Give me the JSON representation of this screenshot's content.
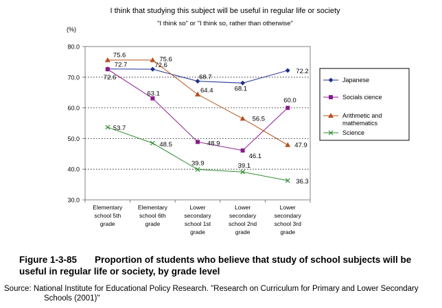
{
  "chart_data": {
    "type": "line",
    "title": "I think that studying this subject will be useful in regular life or society",
    "subtitle": "\"I think so\" or \"I think so, rather than otherwise\"",
    "ylabel": "(%)",
    "xlabel": "",
    "ylim": [
      30.0,
      80.0
    ],
    "yticks": [
      "80.0",
      "70.0",
      "60.0",
      "50.0",
      "40.0",
      "30.0"
    ],
    "ytick_values": [
      80,
      70,
      60,
      50,
      40,
      30
    ],
    "grid": "horizontal-dotted",
    "legend": "right",
    "categories": [
      [
        "Elementary",
        "school 5th",
        "grade"
      ],
      [
        "Elementary",
        "school 6th",
        "grade"
      ],
      [
        "Lower",
        "secondary",
        "school 1st",
        "grade"
      ],
      [
        "Lower",
        "secondary",
        "school 2nd",
        "grade"
      ],
      [
        "Lower",
        "secondary",
        "school 3rd",
        "grade"
      ]
    ],
    "series": [
      {
        "name": "Japanese",
        "legend_lines": [
          "Japanese"
        ],
        "values": [
          72.7,
          72.6,
          68.7,
          68.1,
          72.2
        ],
        "labels": [
          "72.7",
          "72.6",
          "68.7",
          "68.1",
          "72.2"
        ],
        "color": "#1f2f8f",
        "marker": "diamond"
      },
      {
        "name": "Socials cience",
        "legend_lines": [
          "Socials cience"
        ],
        "values": [
          72.6,
          63.1,
          48.9,
          46.1,
          60.0
        ],
        "labels": [
          "72.6",
          "63.1",
          "48.9",
          "46.1",
          "60.0"
        ],
        "color": "#8b1a8b",
        "marker": "square"
      },
      {
        "name": "Arithmetic and mathematics",
        "legend_lines": [
          "Arithmetic and",
          "mathematics"
        ],
        "values": [
          75.6,
          75.6,
          64.4,
          56.5,
          47.9
        ],
        "labels": [
          "75.6",
          "75.6",
          "64.4",
          "56.5",
          "47.9"
        ],
        "color": "#b5501a",
        "marker": "triangle"
      },
      {
        "name": "Science",
        "legend_lines": [
          "Science"
        ],
        "values": [
          53.7,
          48.5,
          39.9,
          39.1,
          36.3
        ],
        "labels": [
          "53.7",
          "48.5",
          "39.9",
          "39.1",
          "36.3"
        ],
        "color": "#2e8b2e",
        "marker": "x"
      }
    ]
  },
  "caption": {
    "number": "Figure 1-3-85",
    "text": "Proportion of students who believe that study of school subjects will be useful in regular life or society, by grade level"
  },
  "source": {
    "line1": "Source: National Institute for Educational Policy Research. \"Research on Curriculum for Primary and Lower Secondary",
    "line2": "Schools (2001)\""
  }
}
